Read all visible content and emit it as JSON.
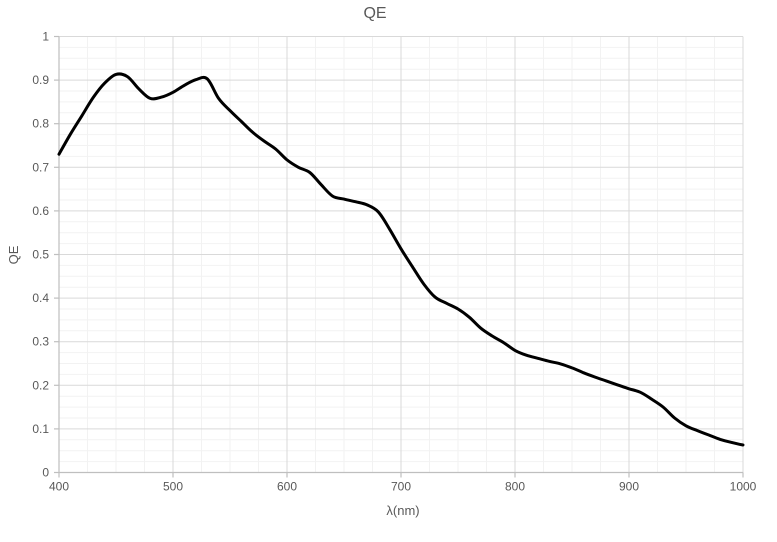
{
  "chart_data": {
    "type": "line",
    "title": "QE",
    "xlabel": "λ(nm)",
    "ylabel": "QE",
    "xlim": [
      400,
      1000
    ],
    "ylim": [
      0,
      1
    ],
    "x_major_unit": 100,
    "x_minor_unit": 25,
    "y_major_unit": 0.1,
    "y_minor_unit": 0.025,
    "grid": "major-and-minor",
    "legend": "none",
    "x_tick_labels": [
      "400",
      "500",
      "600",
      "700",
      "800",
      "900",
      "1000"
    ],
    "y_tick_labels": [
      "0",
      "0.1",
      "0.2",
      "0.3",
      "0.4",
      "0.5",
      "0.6",
      "0.7",
      "0.8",
      "0.9",
      "1"
    ],
    "series": [
      {
        "name": "QE",
        "x": [
          400,
          410,
          420,
          430,
          440,
          450,
          460,
          470,
          480,
          490,
          500,
          510,
          520,
          530,
          540,
          550,
          560,
          570,
          580,
          590,
          600,
          610,
          620,
          630,
          640,
          650,
          660,
          670,
          680,
          690,
          700,
          710,
          720,
          730,
          740,
          750,
          760,
          770,
          780,
          790,
          800,
          810,
          820,
          830,
          840,
          850,
          860,
          870,
          880,
          890,
          900,
          910,
          920,
          930,
          940,
          950,
          960,
          970,
          980,
          990,
          1000
        ],
        "y": [
          0.73,
          0.776,
          0.818,
          0.86,
          0.893,
          0.913,
          0.908,
          0.88,
          0.858,
          0.861,
          0.872,
          0.888,
          0.901,
          0.903,
          0.858,
          0.83,
          0.805,
          0.78,
          0.76,
          0.742,
          0.717,
          0.7,
          0.688,
          0.66,
          0.634,
          0.627,
          0.621,
          0.614,
          0.598,
          0.558,
          0.513,
          0.472,
          0.432,
          0.402,
          0.388,
          0.375,
          0.356,
          0.331,
          0.313,
          0.298,
          0.28,
          0.269,
          0.262,
          0.255,
          0.249,
          0.24,
          0.229,
          0.219,
          0.21,
          0.201,
          0.192,
          0.184,
          0.168,
          0.15,
          0.125,
          0.107,
          0.096,
          0.086,
          0.076,
          0.069,
          0.063
        ]
      }
    ],
    "colors": {
      "line": "#000000",
      "major_grid": "#d9d9d9",
      "minor_grid": "#f2f2f2",
      "axis": "#bfbfbf",
      "text": "#595959",
      "background": "#ffffff"
    }
  }
}
